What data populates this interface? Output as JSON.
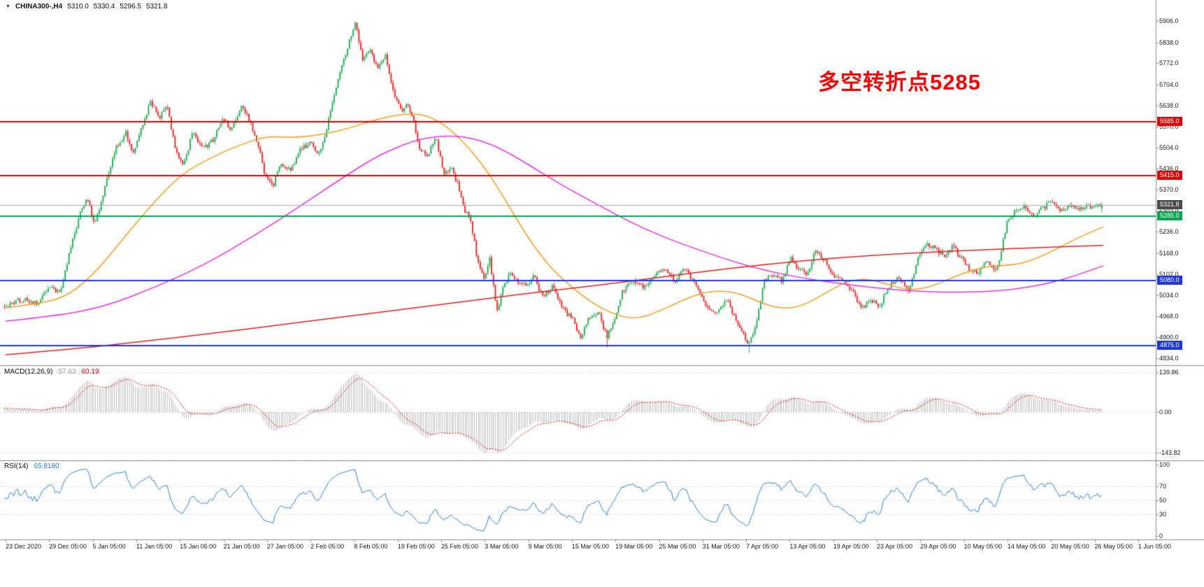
{
  "window": {
    "bg": "#ffffff",
    "border": "#c4c4c4"
  },
  "title_bar": {
    "dropdown_icon": "▼",
    "symbol": "CHINA300-,H4",
    "open": "5310.0",
    "high": "5330.4",
    "low": "5296.5",
    "close": "5321.8"
  },
  "annotation": {
    "text": "多空转折点5285",
    "color": "#fe0000"
  },
  "chart_data": [
    {
      "type": "candlestick",
      "title": "CHINA300-,H4",
      "symbol": "CHINA300-",
      "timeframe": "H4",
      "last_bar_ohlc": {
        "open": 5310.0,
        "high": 5330.4,
        "low": 5296.5,
        "close": 5321.8
      },
      "ylim": [
        4814,
        5973
      ],
      "y_ticks": [
        "5906.0",
        "5838.0",
        "5772.0",
        "5704.0",
        "5638.0",
        "5570.0",
        "5504.0",
        "5436.0",
        "5370.0",
        "5302.0",
        "5236.0",
        "5168.0",
        "5102.0",
        "5034.0",
        "4968.0",
        "4900.0",
        "4834.0"
      ],
      "x_labels": [
        "23 Dec 2020",
        "29 Dec 05:00",
        "5 Jan 05:00",
        "11 Jan 05:00",
        "15 Jan 05:00",
        "21 Jan 05:00",
        "27 Jan 05:00",
        "2 Feb 05:00",
        "8 Feb 05:00",
        "19 Feb 05:00",
        "25 Feb 05:00",
        "3 Mar 05:00",
        "9 Mar 05:00",
        "15 Mar 05:00",
        "19 Mar 05:00",
        "25 Mar 05:00",
        "31 Mar 05:00",
        "7 Apr 05:00",
        "13 Apr 05:00",
        "19 Apr 05:00",
        "23 Apr 05:00",
        "29 Apr 05:00",
        "10 May 05:00",
        "14 May 05:00",
        "20 May 05:00",
        "26 May 05:00",
        "1 Jun 05:00"
      ],
      "bars": 580,
      "candle_colors": {
        "up": "#2fae60",
        "down": "#e23333"
      },
      "extremes": {
        "high": 5906.0,
        "low": 4851.0
      },
      "price_waypoints": [
        [
          8,
          5000
        ],
        [
          30,
          5020
        ],
        [
          55,
          5010
        ],
        [
          70,
          5060
        ],
        [
          85,
          5040
        ],
        [
          100,
          5180
        ],
        [
          115,
          5300
        ],
        [
          125,
          5340
        ],
        [
          135,
          5260
        ],
        [
          150,
          5380
        ],
        [
          165,
          5500
        ],
        [
          180,
          5550
        ],
        [
          190,
          5480
        ],
        [
          200,
          5560
        ],
        [
          215,
          5650
        ],
        [
          228,
          5600
        ],
        [
          238,
          5640
        ],
        [
          250,
          5500
        ],
        [
          262,
          5450
        ],
        [
          275,
          5550
        ],
        [
          290,
          5500
        ],
        [
          305,
          5530
        ],
        [
          318,
          5600
        ],
        [
          330,
          5560
        ],
        [
          345,
          5640
        ],
        [
          358,
          5580
        ],
        [
          368,
          5520
        ],
        [
          378,
          5420
        ],
        [
          390,
          5380
        ],
        [
          400,
          5450
        ],
        [
          415,
          5430
        ],
        [
          430,
          5500
        ],
        [
          445,
          5520
        ],
        [
          455,
          5480
        ],
        [
          465,
          5550
        ],
        [
          480,
          5700
        ],
        [
          492,
          5790
        ],
        [
          500,
          5850
        ],
        [
          508,
          5900
        ],
        [
          518,
          5780
        ],
        [
          528,
          5820
        ],
        [
          540,
          5750
        ],
        [
          550,
          5800
        ],
        [
          560,
          5700
        ],
        [
          572,
          5620
        ],
        [
          582,
          5640
        ],
        [
          592,
          5580
        ],
        [
          600,
          5500
        ],
        [
          612,
          5480
        ],
        [
          622,
          5540
        ],
        [
          635,
          5420
        ],
        [
          645,
          5440
        ],
        [
          655,
          5380
        ],
        [
          665,
          5300
        ],
        [
          672,
          5280
        ],
        [
          682,
          5150
        ],
        [
          692,
          5080
        ],
        [
          700,
          5150
        ],
        [
          710,
          4980
        ],
        [
          718,
          5050
        ],
        [
          728,
          5100
        ],
        [
          740,
          5080
        ],
        [
          752,
          5060
        ],
        [
          762,
          5100
        ],
        [
          775,
          5030
        ],
        [
          790,
          5060
        ],
        [
          805,
          4990
        ],
        [
          818,
          4960
        ],
        [
          830,
          4900
        ],
        [
          842,
          4960
        ],
        [
          855,
          4980
        ],
        [
          868,
          4900
        ],
        [
          878,
          4960
        ],
        [
          890,
          5050
        ],
        [
          905,
          5080
        ],
        [
          920,
          5060
        ],
        [
          935,
          5100
        ],
        [
          950,
          5120
        ],
        [
          965,
          5080
        ],
        [
          980,
          5120
        ],
        [
          995,
          5060
        ],
        [
          1010,
          5000
        ],
        [
          1025,
          4980
        ],
        [
          1040,
          5020
        ],
        [
          1055,
          4940
        ],
        [
          1070,
          4880
        ],
        [
          1080,
          4930
        ],
        [
          1092,
          5080
        ],
        [
          1105,
          5100
        ],
        [
          1118,
          5080
        ],
        [
          1130,
          5150
        ],
        [
          1142,
          5120
        ],
        [
          1155,
          5100
        ],
        [
          1165,
          5180
        ],
        [
          1178,
          5150
        ],
        [
          1190,
          5100
        ],
        [
          1205,
          5080
        ],
        [
          1220,
          5040
        ],
        [
          1232,
          4990
        ],
        [
          1245,
          5020
        ],
        [
          1258,
          5000
        ],
        [
          1270,
          5060
        ],
        [
          1285,
          5090
        ],
        [
          1300,
          5050
        ],
        [
          1312,
          5150
        ],
        [
          1325,
          5200
        ],
        [
          1338,
          5180
        ],
        [
          1350,
          5160
        ],
        [
          1362,
          5190
        ],
        [
          1375,
          5150
        ],
        [
          1385,
          5120
        ],
        [
          1398,
          5100
        ],
        [
          1410,
          5140
        ],
        [
          1425,
          5110
        ],
        [
          1440,
          5270
        ],
        [
          1452,
          5300
        ],
        [
          1465,
          5320
        ],
        [
          1478,
          5290
        ],
        [
          1490,
          5310
        ],
        [
          1502,
          5330
        ],
        [
          1515,
          5300
        ],
        [
          1530,
          5320
        ],
        [
          1545,
          5310
        ],
        [
          1558,
          5315
        ],
        [
          1572,
          5322
        ]
      ],
      "horizontal_levels": [
        {
          "price": 5585.0,
          "label": "5585.0",
          "color": "#e00000",
          "tag_bg": "#e00000",
          "width": 2,
          "name": "resistance-5585"
        },
        {
          "price": 5415.0,
          "label": "5415.0",
          "color": "#e00000",
          "tag_bg": "#e00000",
          "width": 2,
          "name": "resistance-5415"
        },
        {
          "price": 5321.8,
          "label": "5321.8",
          "color": "#a8a8a8",
          "tag_bg": "#4a4a4a",
          "width": 1,
          "name": "current-price-line"
        },
        {
          "price": 5285.0,
          "label": "5285.0",
          "color": "#00a551",
          "tag_bg": "#00a551",
          "width": 2,
          "name": "pivot-5285"
        },
        {
          "price": 5080.0,
          "label": "5080.0",
          "color": "#2038d8",
          "tag_bg": "#2038d8",
          "width": 2,
          "name": "support-5080"
        },
        {
          "price": 4875.0,
          "label": "4875.0",
          "color": "#2038d8",
          "tag_bg": "#2038d8",
          "width": 2,
          "name": "support-4875"
        }
      ],
      "moving_averages": [
        {
          "name": "ma-fast-orange",
          "color": "#f0a028",
          "width": 1.5,
          "points": [
            [
              8,
              4995
            ],
            [
              60,
              5008
            ],
            [
              100,
              5035
            ],
            [
              140,
              5115
            ],
            [
              180,
              5225
            ],
            [
              220,
              5330
            ],
            [
              260,
              5420
            ],
            [
              300,
              5470
            ],
            [
              340,
              5510
            ],
            [
              380,
              5540
            ],
            [
              420,
              5535
            ],
            [
              460,
              5545
            ],
            [
              500,
              5565
            ],
            [
              540,
              5595
            ],
            [
              580,
              5612
            ],
            [
              610,
              5608
            ],
            [
              640,
              5570
            ],
            [
              670,
              5505
            ],
            [
              700,
              5420
            ],
            [
              730,
              5310
            ],
            [
              760,
              5200
            ],
            [
              790,
              5115
            ],
            [
              820,
              5055
            ],
            [
              850,
              5005
            ],
            [
              880,
              4972
            ],
            [
              910,
              4958
            ],
            [
              940,
              4980
            ],
            [
              970,
              5012
            ],
            [
              1000,
              5040
            ],
            [
              1030,
              5050
            ],
            [
              1060,
              5038
            ],
            [
              1090,
              5008
            ],
            [
              1120,
              4990
            ],
            [
              1150,
              5002
            ],
            [
              1180,
              5040
            ],
            [
              1210,
              5078
            ],
            [
              1240,
              5088
            ],
            [
              1270,
              5068
            ],
            [
              1300,
              5050
            ],
            [
              1330,
              5060
            ],
            [
              1360,
              5088
            ],
            [
              1390,
              5115
            ],
            [
              1420,
              5128
            ],
            [
              1450,
              5130
            ],
            [
              1480,
              5148
            ],
            [
              1510,
              5180
            ],
            [
              1540,
              5215
            ],
            [
              1578,
              5252
            ]
          ]
        },
        {
          "name": "ma-medium-magenta",
          "color": "#e832e0",
          "width": 1.5,
          "points": [
            [
              8,
              4952
            ],
            [
              80,
              4968
            ],
            [
              150,
              4998
            ],
            [
              220,
              5058
            ],
            [
              290,
              5128
            ],
            [
              360,
              5218
            ],
            [
              430,
              5318
            ],
            [
              490,
              5408
            ],
            [
              540,
              5478
            ],
            [
              590,
              5525
            ],
            [
              630,
              5542
            ],
            [
              670,
              5538
            ],
            [
              710,
              5508
            ],
            [
              750,
              5458
            ],
            [
              800,
              5388
            ],
            [
              850,
              5328
            ],
            [
              900,
              5268
            ],
            [
              950,
              5218
            ],
            [
              1000,
              5178
            ],
            [
              1050,
              5140
            ],
            [
              1100,
              5110
            ],
            [
              1150,
              5088
            ],
            [
              1200,
              5072
            ],
            [
              1250,
              5058
            ],
            [
              1300,
              5048
            ],
            [
              1350,
              5044
            ],
            [
              1400,
              5044
            ],
            [
              1450,
              5052
            ],
            [
              1500,
              5072
            ],
            [
              1540,
              5098
            ],
            [
              1578,
              5128
            ]
          ]
        },
        {
          "name": "ma-slow-red",
          "color": "#e02020",
          "width": 1.5,
          "points": [
            [
              8,
              4845
            ],
            [
              100,
              4862
            ],
            [
              200,
              4886
            ],
            [
              300,
              4912
            ],
            [
              400,
              4940
            ],
            [
              500,
              4968
            ],
            [
              600,
              4996
            ],
            [
              700,
              5025
            ],
            [
              800,
              5052
            ],
            [
              900,
              5078
            ],
            [
              1000,
              5108
            ],
            [
              1100,
              5134
            ],
            [
              1200,
              5154
            ],
            [
              1300,
              5168
            ],
            [
              1400,
              5178
            ],
            [
              1500,
              5187
            ],
            [
              1578,
              5193
            ]
          ]
        }
      ]
    },
    {
      "type": "macd",
      "title": "MACD(12,26,9)",
      "value_main": "57.63",
      "value_signal": "60.19",
      "params": [
        12,
        26,
        9
      ],
      "ylim": [
        -165,
        160
      ],
      "y_ticks": [
        "139.86",
        "0.00",
        "-143.82"
      ],
      "extremes": {
        "max": 139.86,
        "min": -143.82
      },
      "colors": {
        "histogram": "#bdbdbd",
        "signal": "#e00000"
      }
    },
    {
      "type": "rsi",
      "title": "RSI(14)",
      "value": "65.8180",
      "period": 14,
      "last_value": 65.818,
      "ylim": [
        -4,
        104
      ],
      "y_ticks": [
        "100",
        "70",
        "50",
        "30",
        "0"
      ],
      "levels": [
        70,
        50,
        30
      ],
      "colors": {
        "line": "#2f80d8",
        "levels": "#c9c9c9"
      }
    }
  ]
}
